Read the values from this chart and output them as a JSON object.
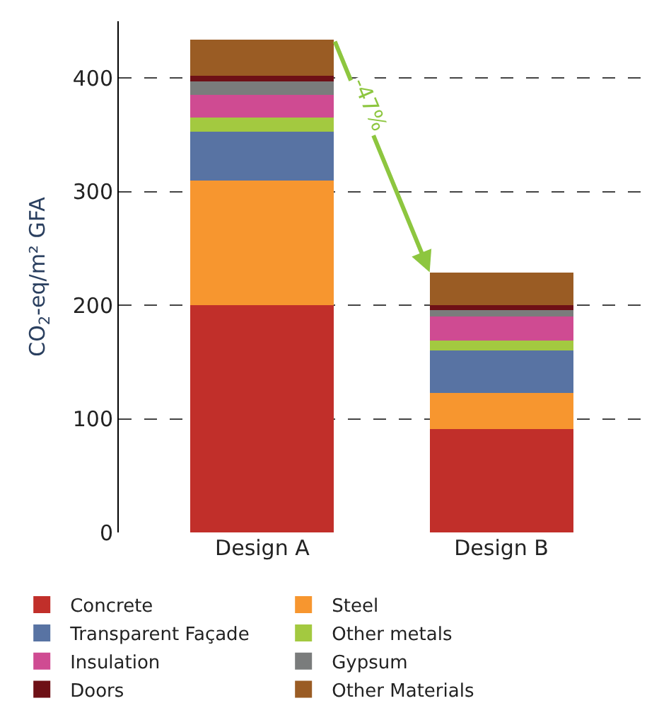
{
  "chart_data": {
    "type": "bar",
    "stacked": true,
    "ylabel": "CO$_{2}$-eq/m² GFA",
    "categories": [
      "Design A",
      "Design B"
    ],
    "series": [
      {
        "name": "Concrete",
        "color": "#c12f2a",
        "values": [
          200,
          91
        ]
      },
      {
        "name": "Steel",
        "color": "#f7962f",
        "values": [
          110,
          32
        ]
      },
      {
        "name": "Transparent Façade",
        "color": "#5873a3",
        "values": [
          43,
          37
        ]
      },
      {
        "name": "Other metals",
        "color": "#a3c940",
        "values": [
          12,
          9
        ]
      },
      {
        "name": "Insulation",
        "color": "#cf4b92",
        "values": [
          20,
          21
        ]
      },
      {
        "name": "Gypsum",
        "color": "#7a7c7c",
        "values": [
          12,
          6
        ]
      },
      {
        "name": "Doors",
        "color": "#6e1016",
        "values": [
          5,
          4
        ]
      },
      {
        "name": "Other Materials",
        "color": "#9a5c24",
        "values": [
          32,
          29
        ]
      }
    ],
    "ylim": [
      0,
      450
    ],
    "yticks": [
      0,
      100,
      200,
      300,
      400
    ],
    "grid": "y",
    "legend": "bottom",
    "annotations": [
      "-47%"
    ]
  }
}
